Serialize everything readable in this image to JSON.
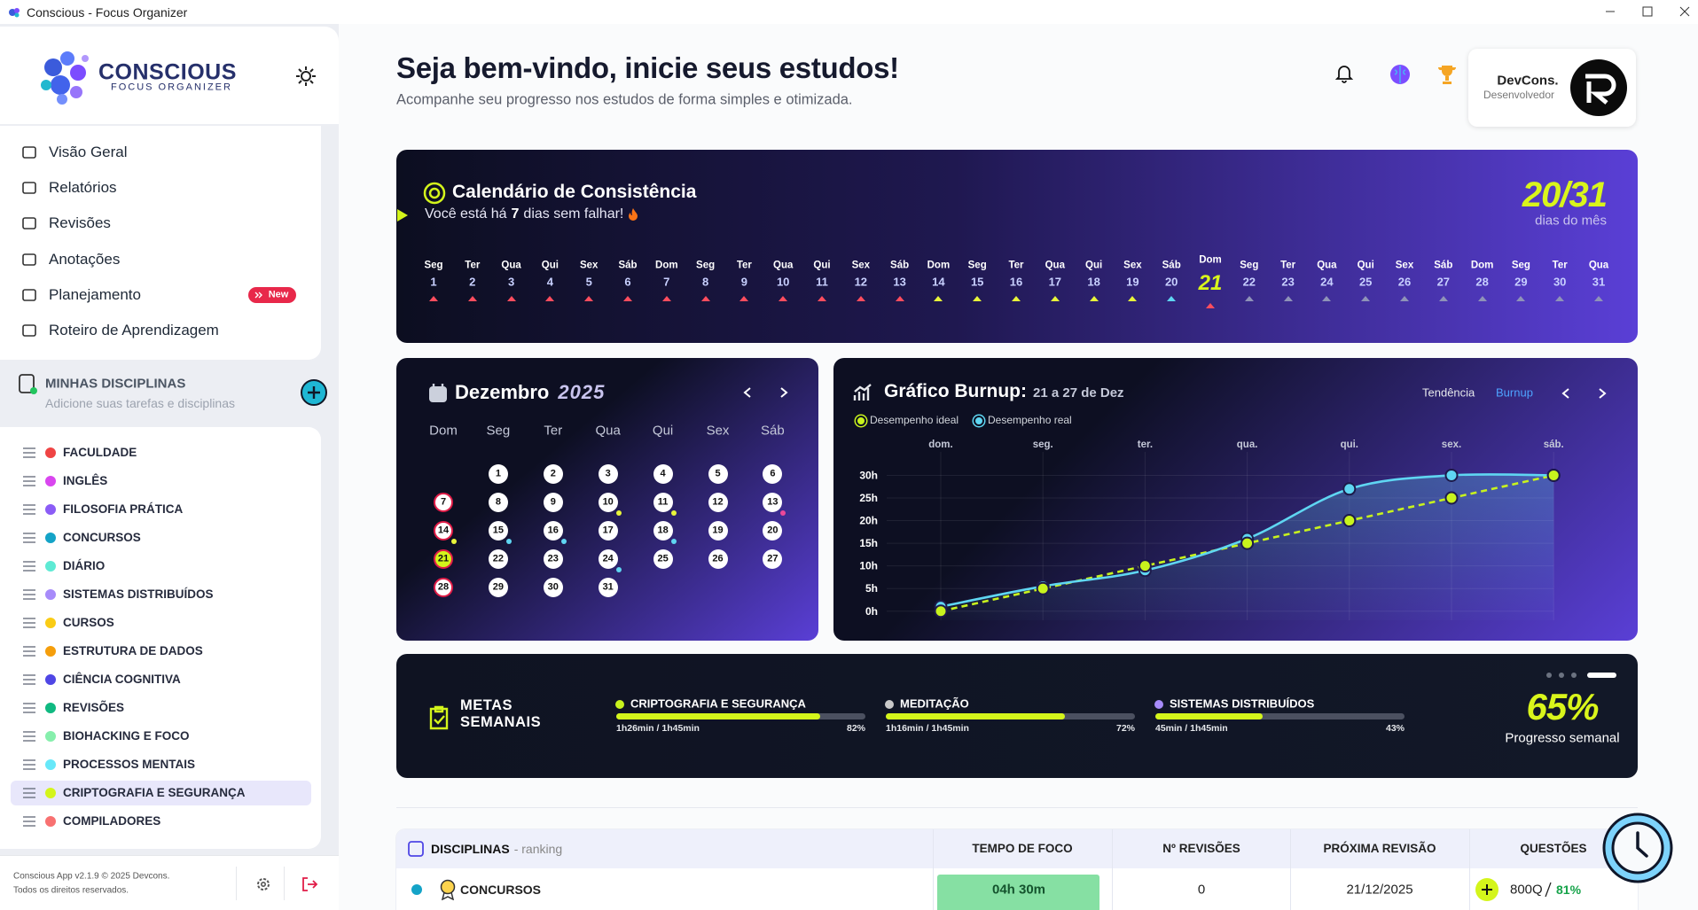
{
  "window": {
    "title": "Conscious - Focus Organizer"
  },
  "sidebar": {
    "logo": {
      "name": "CONSCIOUS",
      "tagline": "FOCUS ORGANIZER"
    },
    "nav": [
      {
        "label": "Visão Geral"
      },
      {
        "label": "Relatórios"
      },
      {
        "label": "Revisões"
      },
      {
        "label": "Anotações"
      },
      {
        "label": "Planejamento",
        "badge": "New"
      },
      {
        "label": "Roteiro de Aprendizagem"
      }
    ],
    "disciplines_header": {
      "title": "MINHAS DISCIPLINAS",
      "subtitle": "Adicione suas tarefas e disciplinas"
    },
    "disciplines": [
      {
        "name": "FACULDADE",
        "color": "#ef4444"
      },
      {
        "name": "INGLÊS",
        "color": "#d946ef"
      },
      {
        "name": "FILOSOFIA PRÁTICA",
        "color": "#8b5cf6"
      },
      {
        "name": "CONCURSOS",
        "color": "#14a3c7"
      },
      {
        "name": "DIÁRIO",
        "color": "#5eead4"
      },
      {
        "name": "SISTEMAS DISTRIBUÍDOS",
        "color": "#a78bfa"
      },
      {
        "name": "CURSOS",
        "color": "#facc15"
      },
      {
        "name": "ESTRUTURA DE DADOS",
        "color": "#f59e0b"
      },
      {
        "name": "CIÊNCIA COGNITIVA",
        "color": "#4f46e5"
      },
      {
        "name": "REVISÕES",
        "color": "#10b981"
      },
      {
        "name": "BIOHACKING E FOCO",
        "color": "#86efac"
      },
      {
        "name": "PROCESSOS MENTAIS",
        "color": "#67e8f9"
      },
      {
        "name": "CRIPTOGRAFIA E SEGURANÇA",
        "color": "#d4f51b",
        "selected": true
      },
      {
        "name": "COMPILADORES",
        "color": "#f87171"
      }
    ],
    "footer": [
      "Conscious App v2.1.9 © 2025 Devcons.",
      "Todos os direitos reservados."
    ]
  },
  "header": {
    "title": "Seja bem-vindo, inicie seus estudos!",
    "subtitle": "Acompanhe seu progresso nos estudos de forma simples e otimizada.",
    "user": {
      "name": "DevCons.",
      "role": "Desenvolvedor"
    }
  },
  "consistency": {
    "title": "Calendário de Consistência",
    "streak_before": "Você está há",
    "streak_days": 7,
    "streak_after": "dias sem falhar!",
    "score": "20/31",
    "score_label": "dias do mês",
    "days": [
      {
        "weekday": "Seg",
        "day": 1,
        "mark": "#ff4d5e"
      },
      {
        "weekday": "Ter",
        "day": 2,
        "mark": "#ff4d5e"
      },
      {
        "weekday": "Qua",
        "day": 3,
        "mark": "#ff4d5e"
      },
      {
        "weekday": "Qui",
        "day": 4,
        "mark": "#ff4d5e"
      },
      {
        "weekday": "Sex",
        "day": 5,
        "mark": "#ff4d5e"
      },
      {
        "weekday": "Sáb",
        "day": 6,
        "mark": "#ff4d5e"
      },
      {
        "weekday": "Dom",
        "day": 7,
        "mark": "#ff4d5e"
      },
      {
        "weekday": "Seg",
        "day": 8,
        "mark": "#ff4d5e"
      },
      {
        "weekday": "Ter",
        "day": 9,
        "mark": "#ff4d5e"
      },
      {
        "weekday": "Qua",
        "day": 10,
        "mark": "#ff4d5e"
      },
      {
        "weekday": "Qui",
        "day": 11,
        "mark": "#ff4d5e"
      },
      {
        "weekday": "Sex",
        "day": 12,
        "mark": "#ff4d5e"
      },
      {
        "weekday": "Sáb",
        "day": 13,
        "mark": "#ff4d5e"
      },
      {
        "weekday": "Dom",
        "day": 14,
        "mark": "#e8f53a"
      },
      {
        "weekday": "Seg",
        "day": 15,
        "mark": "#e8f53a"
      },
      {
        "weekday": "Ter",
        "day": 16,
        "mark": "#e8f53a"
      },
      {
        "weekday": "Qua",
        "day": 17,
        "mark": "#e8f53a"
      },
      {
        "weekday": "Qui",
        "day": 18,
        "mark": "#e8f53a"
      },
      {
        "weekday": "Sex",
        "day": 19,
        "mark": "#e8f53a"
      },
      {
        "weekday": "Sáb",
        "day": 20,
        "mark": "#5fd6f2"
      },
      {
        "weekday": "Dom",
        "day": 21,
        "mark": "#ff4d5e",
        "current": true
      },
      {
        "weekday": "Seg",
        "day": 22,
        "mark": "#8f93b8"
      },
      {
        "weekday": "Ter",
        "day": 23,
        "mark": "#8f93b8"
      },
      {
        "weekday": "Qua",
        "day": 24,
        "mark": "#8f93b8"
      },
      {
        "weekday": "Qui",
        "day": 25,
        "mark": "#8f93b8"
      },
      {
        "weekday": "Sex",
        "day": 26,
        "mark": "#8f93b8"
      },
      {
        "weekday": "Sáb",
        "day": 27,
        "mark": "#8f93b8"
      },
      {
        "weekday": "Dom",
        "day": 28,
        "mark": "#8f93b8"
      },
      {
        "weekday": "Seg",
        "day": 29,
        "mark": "#8f93b8"
      },
      {
        "weekday": "Ter",
        "day": 30,
        "mark": "#8f93b8"
      },
      {
        "weekday": "Qua",
        "day": 31,
        "mark": "#8f93b8"
      }
    ]
  },
  "month_calendar": {
    "month": "Dezembro",
    "year": 2025,
    "weekdays": [
      "Dom",
      "Seg",
      "Ter",
      "Qua",
      "Qui",
      "Sex",
      "Sáb"
    ],
    "first_weekday": 1,
    "days": [
      1,
      2,
      3,
      4,
      5,
      6,
      7,
      8,
      9,
      10,
      11,
      12,
      13,
      14,
      15,
      16,
      17,
      18,
      19,
      20,
      21,
      22,
      23,
      24,
      25,
      26,
      27,
      28,
      29,
      30,
      31
    ],
    "ringed_days": [
      7,
      14,
      21,
      28
    ],
    "today": 21,
    "dots": [
      {
        "day": 10,
        "color": "#e8f53a"
      },
      {
        "day": 11,
        "color": "#e8f53a"
      },
      {
        "day": 13,
        "color": "#ec4899"
      },
      {
        "day": 14,
        "color": "#e8f53a"
      },
      {
        "day": 15,
        "color": "#5fd6f2"
      },
      {
        "day": 16,
        "color": "#5fd6f2"
      },
      {
        "day": 18,
        "color": "#5fd6f2"
      },
      {
        "day": 24,
        "color": "#5fd6f2"
      }
    ]
  },
  "burnup": {
    "type": "line",
    "title": "Gráfico Burnup:",
    "range": "21 a 27 de Dez",
    "tabs": [
      "Tendência",
      "Burnup"
    ],
    "active_tab": 1,
    "categories": [
      "dom.",
      "seg.",
      "ter.",
      "qua.",
      "qui.",
      "sex.",
      "sáb."
    ],
    "ylim": [
      -2,
      34
    ],
    "yticks": [
      {
        "value": 0,
        "label": "0h"
      },
      {
        "value": 5,
        "label": "5h"
      },
      {
        "value": 10,
        "label": "10h"
      },
      {
        "value": 15,
        "label": "15h"
      },
      {
        "value": 20,
        "label": "20h"
      },
      {
        "value": 25,
        "label": "25h"
      },
      {
        "value": 30,
        "label": "30h"
      }
    ],
    "series": [
      {
        "name": "Desempenho ideal",
        "color": "#c8f31d",
        "dashed": true,
        "values": [
          0,
          5,
          10,
          15,
          20,
          25,
          30
        ]
      },
      {
        "name": "Desempenho real",
        "color": "#5fd6f2",
        "values": [
          1,
          5.5,
          9,
          16,
          27,
          30,
          30
        ]
      }
    ]
  },
  "weekly_goals": {
    "title": "METAS SEMANAIS",
    "names": [
      "CRIPTOGRAFIA E SEGURANÇA",
      "MEDITAÇÃO",
      "SISTEMAS DISTRIBUÍDOS"
    ],
    "colors": [
      "#c8f31d",
      "#c9c9c9",
      "#a78bfa"
    ],
    "times": [
      "1h26min / 1h45min",
      "1h16min / 1h45min",
      "45min / 1h45min"
    ],
    "values": [
      82,
      72,
      43
    ],
    "value_labels": [
      "82%",
      "72%",
      "43%"
    ],
    "progress": "65%",
    "progress_label": "Progresso semanal"
  },
  "table": {
    "title": "DISCIPLINAS",
    "title_note": "- ranking",
    "columns": [
      "TEMPO DE FOCO",
      "Nº REVISÕES",
      "PRÓXIMA REVISÃO",
      "QUESTÕES"
    ],
    "rows": [
      {
        "name": "CONCURSOS",
        "color": "#14a3c7",
        "focus": "04h 30m",
        "revisions": 0,
        "next_review": "21/12/2025",
        "questions": "800Q",
        "accuracy": "81%"
      }
    ]
  }
}
